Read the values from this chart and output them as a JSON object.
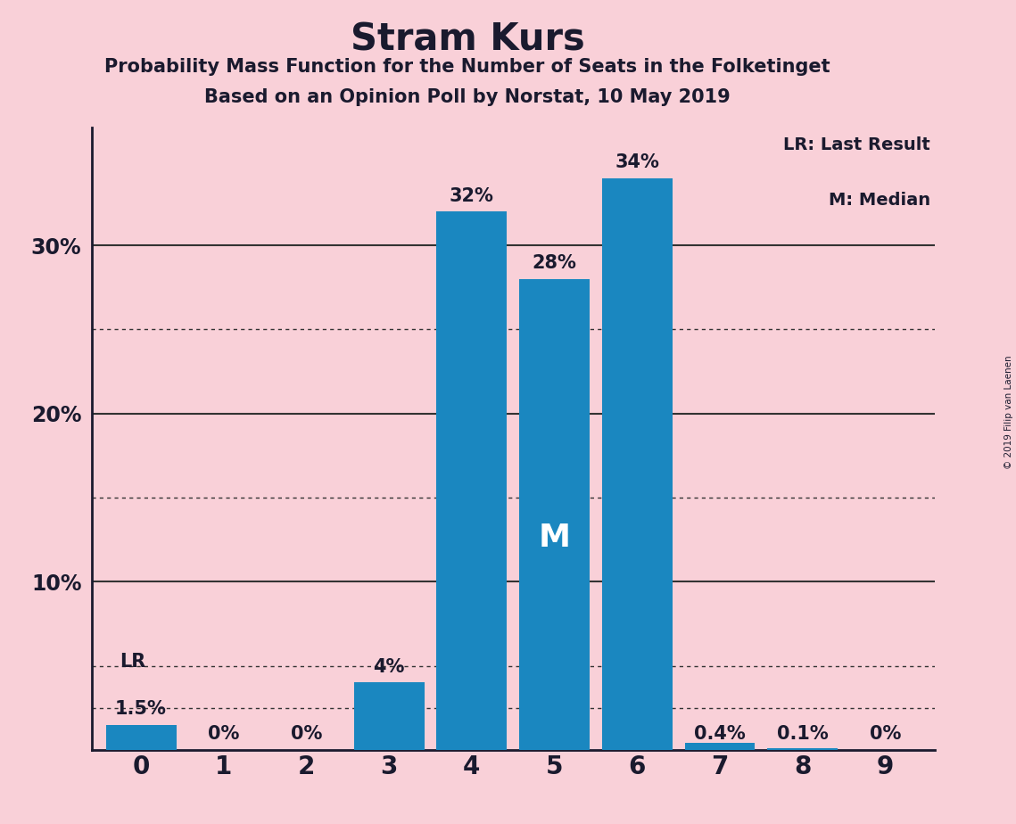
{
  "title": "Stram Kurs",
  "subtitle1": "Probability Mass Function for the Number of Seats in the Folketinget",
  "subtitle2": "Based on an Opinion Poll by Norstat, 10 May 2019",
  "copyright": "© 2019 Filip van Laenen",
  "categories": [
    0,
    1,
    2,
    3,
    4,
    5,
    6,
    7,
    8,
    9
  ],
  "values": [
    1.5,
    0.0,
    0.0,
    4.0,
    32.0,
    28.0,
    34.0,
    0.4,
    0.1,
    0.0
  ],
  "labels": [
    "1.5%",
    "0%",
    "0%",
    "4%",
    "32%",
    "28%",
    "34%",
    "0.4%",
    "0.1%",
    "0%"
  ],
  "bar_color": "#1a87c0",
  "background_color": "#f9d0d8",
  "text_color": "#1a1a2e",
  "ylim": [
    0,
    37
  ],
  "solid_grid_levels": [
    10,
    20,
    30
  ],
  "dotted_grid_levels": [
    5,
    15,
    25
  ],
  "lr_dotted_level": 2.5,
  "grid_color": "#333333",
  "lr_bar_index": 0,
  "median_bar_index": 5,
  "legend_text1": "LR: Last Result",
  "legend_text2": "M: Median"
}
